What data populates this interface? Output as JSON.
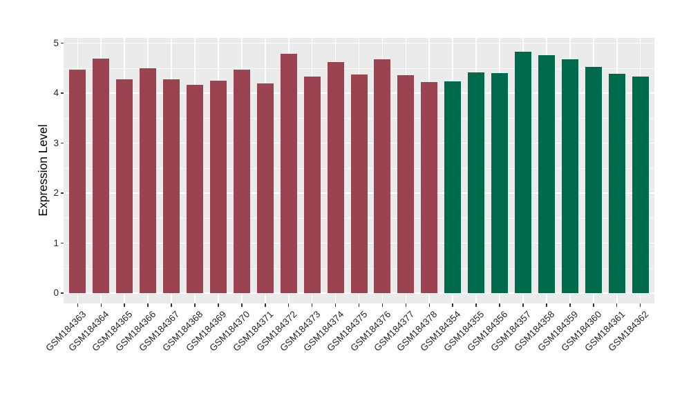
{
  "chart_data": {
    "type": "bar",
    "title": "",
    "xlabel": "",
    "ylabel": "Expression Level",
    "ylim": [
      0,
      5
    ],
    "yticks": [
      0,
      1,
      2,
      3,
      4,
      5
    ],
    "y_minor_ticks": [
      0.5,
      1.5,
      2.5,
      3.5,
      4.5
    ],
    "grid": "on",
    "legend": "none",
    "panel_background": "#EBEBEB",
    "gridline_color": "#FFFFFF",
    "tick_mark_color": "#333333",
    "tick_label_color": "#262626",
    "series": [
      {
        "name": "group-1",
        "color": "#9C4351",
        "categories": [
          "GSM184363",
          "GSM184364",
          "GSM184365",
          "GSM184366",
          "GSM184367",
          "GSM184368",
          "GSM184369",
          "GSM184370",
          "GSM184371",
          "GSM184372",
          "GSM184373",
          "GSM184374",
          "GSM184375",
          "GSM184376",
          "GSM184377",
          "GSM184378"
        ],
        "values": [
          4.47,
          4.69,
          4.27,
          4.5,
          4.28,
          4.17,
          4.25,
          4.47,
          4.2,
          4.78,
          4.33,
          4.62,
          4.37,
          4.68,
          4.36,
          4.22
        ]
      },
      {
        "name": "group-2",
        "color": "#006B4C",
        "categories": [
          "GSM184354",
          "GSM184355",
          "GSM184356",
          "GSM184357",
          "GSM184358",
          "GSM184359",
          "GSM184360",
          "GSM184361",
          "GSM184362"
        ],
        "values": [
          4.23,
          4.42,
          4.4,
          4.83,
          4.76,
          4.68,
          4.52,
          4.39,
          4.33
        ]
      }
    ]
  }
}
